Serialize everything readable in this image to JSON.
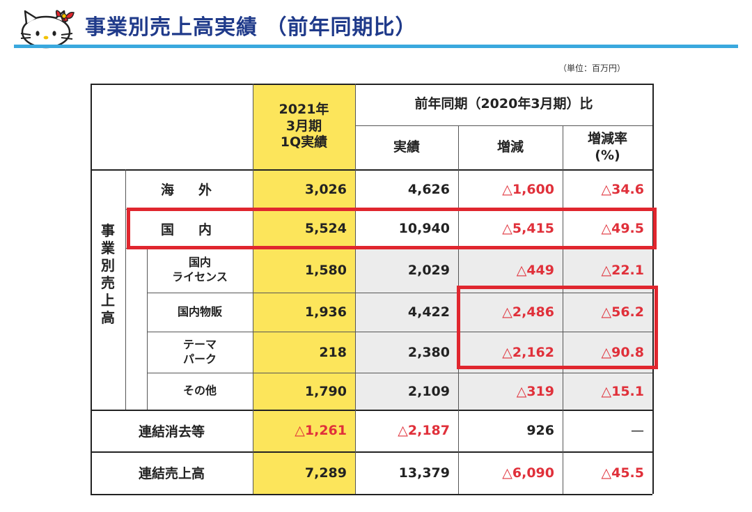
{
  "title": "事業別売上高実績 （前年同期比）",
  "unit_note": "（単位：百万円）",
  "colors": {
    "title": "#1f3a8a",
    "accent_line": "#3aa8de",
    "yellow": "#fce55b",
    "gray_row": "#ececec",
    "negative": "#e0303a",
    "highlight_box": "#e0262e"
  },
  "header": {
    "current_col": "2021年\n3月期\n1Q実績",
    "prior_group": "前年同期（2020年3月期）比",
    "actual": "実績",
    "change": "増減",
    "change_rate": "増減率\n(%)"
  },
  "side_label": "事\n業\n別\n売\n上\n高",
  "rows": [
    {
      "label": "海　外",
      "current": "3,026",
      "prior": "4,626",
      "change": "△1,600",
      "rate": "△34.6"
    },
    {
      "label": "国　内",
      "current": "5,524",
      "prior": "10,940",
      "change": "△5,415",
      "rate": "△49.5"
    },
    {
      "label": "国内\nライセンス",
      "current": "1,580",
      "prior": "2,029",
      "change": "△449",
      "rate": "△22.1"
    },
    {
      "label": "国内物販",
      "current": "1,936",
      "prior": "4,422",
      "change": "△2,486",
      "rate": "△56.2"
    },
    {
      "label": "テーマ\nパーク",
      "current": "218",
      "prior": "2,380",
      "change": "△2,162",
      "rate": "△90.8"
    },
    {
      "label": "その他",
      "current": "1,790",
      "prior": "2,109",
      "change": "△319",
      "rate": "△15.1"
    }
  ],
  "elimination": {
    "label": "連結消去等",
    "current": "△1,261",
    "prior": "△2,187",
    "change": "926",
    "rate": "—"
  },
  "total": {
    "label": "連結売上高",
    "current": "7,289",
    "prior": "13,379",
    "change": "△6,090",
    "rate": "△45.5"
  }
}
